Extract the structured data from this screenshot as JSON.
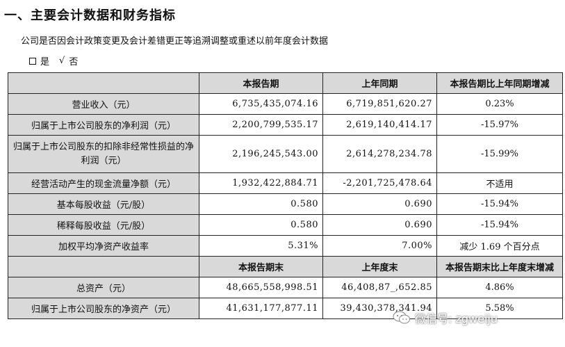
{
  "heading": "一、主要会计数据和财务指标",
  "question": "公司是否因会计政策变更及会计差错更正等追溯调整或重述以前年度会计数据",
  "choice": {
    "yes_label": "是",
    "no_mark": "√",
    "no_label": "否"
  },
  "header1": {
    "current": "本报告期",
    "prior": "上年同期",
    "change": "本报告期比上年同期增减"
  },
  "rows1": [
    {
      "label": "营业收入（元）",
      "current": "6,735,435,074.16",
      "prior": "6,719,851,620.27",
      "change": "0.23%"
    },
    {
      "label": "归属于上市公司股东的净利润（元）",
      "current": "2,200,799,535.17",
      "prior": "2,619,140,414.17",
      "change": "-15.97%"
    },
    {
      "label": "归属于上市公司股东的扣除非经常性损益的净利润（元）",
      "current": "2,196,245,543.00",
      "prior": "2,614,278,234.78",
      "change": "-15.99%"
    },
    {
      "label": "经营活动产生的现金流量净额（元）",
      "current": "1,932,422,884.71",
      "prior": "-2,201,725,478.64",
      "change": "不适用"
    },
    {
      "label": "基本每股收益（元/股）",
      "current": "0.580",
      "prior": "0.690",
      "change": "-15.94%"
    },
    {
      "label": "稀释每股收益（元/股）",
      "current": "0.580",
      "prior": "0.690",
      "change": "-15.94%"
    },
    {
      "label": "加权平均净资产收益率",
      "current": "5.31%",
      "prior": "7.00%",
      "change": "减少 1.69 个百分点"
    }
  ],
  "header2": {
    "current": "本报告期末",
    "prior": "上年度末",
    "change": "本报告期末比上年度末增减"
  },
  "rows2": [
    {
      "label": "总资产（元）",
      "current": "48,665,558,998.51",
      "prior": "46,408,87_,652.85",
      "change": "4.86%"
    },
    {
      "label": "归属于上市公司股东的净资产（元）",
      "current": "41,631,177,877.11",
      "prior": "39,430,378,341.94",
      "change": "5.58%"
    }
  ],
  "watermark": {
    "text": "微信号: zgweiju",
    "icon": "wechat-icon"
  }
}
